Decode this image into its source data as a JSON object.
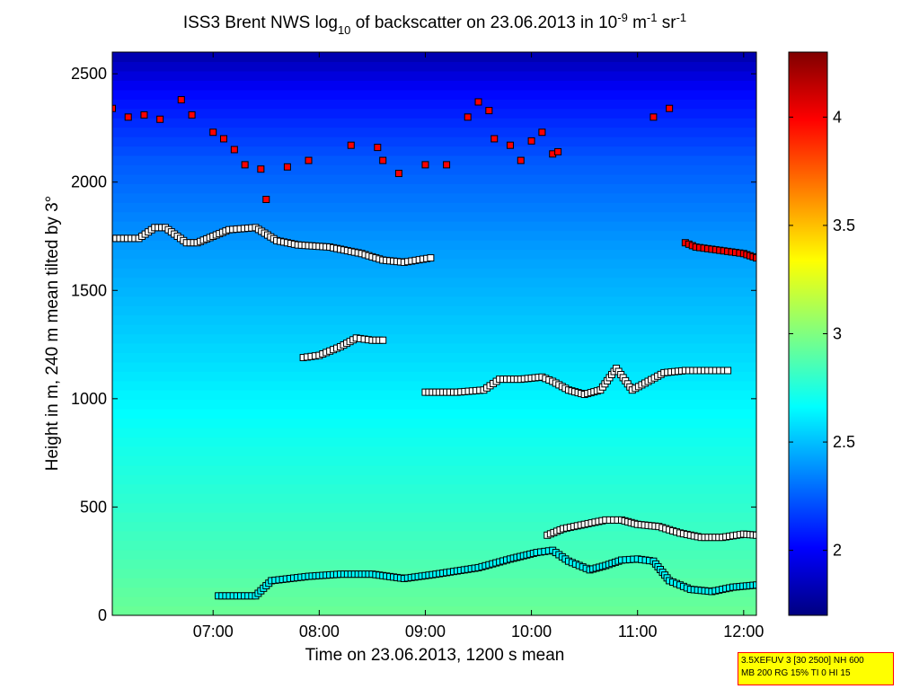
{
  "chart_data": {
    "type": "heatmap",
    "title": {
      "prefix": "ISS3 Brent NWS log",
      "log_base": "10",
      "middle": " of backscatter on 23.06.2013 in 10",
      "exp1": "-9",
      "unit1": " m",
      "exp2": "-1",
      "unit2": " sr",
      "exp3": "-1"
    },
    "xlabel": "Time on 23.06.2013, 1200 s mean",
    "ylabel": "Height in m, 240 m mean tilted by 3°",
    "xlim": [
      6.05,
      12.12
    ],
    "ylim": [
      0,
      2600
    ],
    "x_ticks": [
      {
        "value": 7,
        "label": "07:00"
      },
      {
        "value": 8,
        "label": "08:00"
      },
      {
        "value": 9,
        "label": "09:00"
      },
      {
        "value": 10,
        "label": "10:00"
      },
      {
        "value": 11,
        "label": "11:00"
      },
      {
        "value": 12,
        "label": "12:00"
      }
    ],
    "y_ticks": [
      {
        "value": 0,
        "label": "0"
      },
      {
        "value": 500,
        "label": "500"
      },
      {
        "value": 1000,
        "label": "1000"
      },
      {
        "value": 1500,
        "label": "1500"
      },
      {
        "value": 2000,
        "label": "2000"
      },
      {
        "value": 2500,
        "label": "2500"
      }
    ],
    "colorbar": {
      "range": [
        1.7,
        4.3
      ],
      "ticks": [
        {
          "value": 2,
          "label": "2"
        },
        {
          "value": 2.5,
          "label": "2.5"
        },
        {
          "value": 3,
          "label": "3"
        },
        {
          "value": 3.5,
          "label": "3.5"
        },
        {
          "value": 4,
          "label": "4"
        }
      ]
    },
    "background_profile": [
      {
        "height": 0,
        "value": 2.95
      },
      {
        "height": 300,
        "value": 2.85
      },
      {
        "height": 800,
        "value": 2.72
      },
      {
        "height": 1300,
        "value": 2.55
      },
      {
        "height": 1700,
        "value": 2.42
      },
      {
        "height": 2100,
        "value": 2.25
      },
      {
        "height": 2400,
        "value": 2.05
      },
      {
        "height": 2600,
        "value": 1.8
      }
    ],
    "series": [
      {
        "name": "upper layer",
        "color": "#000000",
        "fill": "#ffffff",
        "x": [
          6.05,
          6.3,
          6.45,
          6.55,
          6.75,
          6.85,
          7.0,
          7.15,
          7.4,
          7.6,
          7.8,
          8.1,
          8.4,
          8.6,
          8.8,
          9.05
        ],
        "y": [
          1740,
          1740,
          1790,
          1790,
          1720,
          1720,
          1750,
          1780,
          1790,
          1730,
          1710,
          1700,
          1670,
          1640,
          1630,
          1650
        ]
      },
      {
        "name": "upper layer east",
        "color": "#000000",
        "fill": "#ff0000",
        "x": [
          11.45,
          11.55,
          11.7,
          11.85,
          12.0,
          12.12
        ],
        "y": [
          1720,
          1700,
          1690,
          1680,
          1670,
          1650
        ]
      },
      {
        "name": "middle layer a",
        "color": "#000000",
        "fill": "#ffffff",
        "x": [
          7.85,
          8.0,
          8.2,
          8.35,
          8.5,
          8.6
        ],
        "y": [
          1190,
          1200,
          1240,
          1280,
          1270,
          1270
        ]
      },
      {
        "name": "middle layer b",
        "color": "#000000",
        "fill": "#ffffff",
        "x": [
          9.0,
          9.3,
          9.55,
          9.7,
          9.9,
          10.1,
          10.2,
          10.35,
          10.5,
          10.65,
          10.8,
          10.95,
          11.1,
          11.25,
          11.45,
          11.7,
          11.85
        ],
        "y": [
          1030,
          1030,
          1040,
          1090,
          1090,
          1100,
          1080,
          1040,
          1020,
          1040,
          1140,
          1040,
          1080,
          1120,
          1130,
          1130,
          1130
        ]
      },
      {
        "name": "boundary layer upper",
        "color": "#000000",
        "fill": "#ffffff",
        "x": [
          10.15,
          10.3,
          10.5,
          10.7,
          10.85,
          11.0,
          11.2,
          11.4,
          11.6,
          11.8,
          12.0,
          12.12
        ],
        "y": [
          370,
          400,
          420,
          440,
          440,
          420,
          410,
          380,
          360,
          360,
          375,
          370
        ]
      },
      {
        "name": "boundary layer lower",
        "color": "#000000",
        "fill": "#00ffff",
        "x": [
          7.05,
          7.4,
          7.55,
          7.9,
          8.2,
          8.5,
          8.8,
          9.1,
          9.5,
          9.8,
          10.05,
          10.2,
          10.35,
          10.55,
          10.7,
          10.85,
          11.0,
          11.15,
          11.3,
          11.5,
          11.7,
          11.9,
          12.12
        ],
        "y": [
          90,
          90,
          160,
          180,
          190,
          190,
          170,
          190,
          220,
          260,
          290,
          300,
          250,
          210,
          230,
          255,
          260,
          250,
          160,
          120,
          110,
          130,
          140
        ]
      },
      {
        "name": "cloud returns",
        "color": "#000000",
        "fill": "#ff0000",
        "x": [
          6.05,
          6.2,
          6.35,
          6.5,
          6.7,
          6.8,
          7.0,
          7.1,
          7.2,
          7.3,
          7.45,
          7.5,
          7.7,
          7.9,
          8.3,
          8.55,
          8.6,
          8.75,
          9.0,
          9.2,
          9.4,
          9.5,
          9.6,
          9.65,
          9.8,
          9.9,
          10.0,
          10.1,
          10.2,
          10.25,
          11.15,
          11.3
        ],
        "y": [
          2340,
          2300,
          2310,
          2290,
          2380,
          2310,
          2230,
          2200,
          2150,
          2080,
          2060,
          1920,
          2070,
          2100,
          2170,
          2160,
          2100,
          2040,
          2080,
          2080,
          2300,
          2370,
          2330,
          2200,
          2170,
          2100,
          2190,
          2230,
          2130,
          2140,
          2300,
          2340
        ]
      }
    ]
  },
  "info_box": {
    "line1": "3.5XEFUV 3 [30 2500] NH 600",
    "line2": "MB 200 RG 15% TI 0 HI 15"
  }
}
